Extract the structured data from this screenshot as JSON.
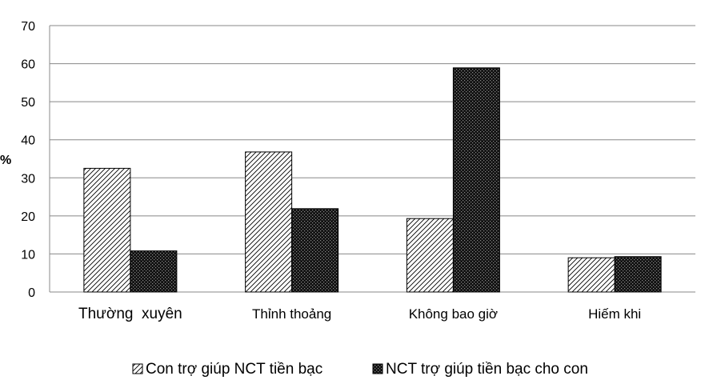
{
  "chart_data": {
    "type": "bar",
    "categories": [
      "Thường  xuyên",
      "Thỉnh thoảng",
      "Không bao giờ",
      "Hiếm khi"
    ],
    "series": [
      {
        "name": "Con trợ giúp NCT tiền bạc",
        "values": [
          32.5,
          36.8,
          19.3,
          9.0
        ],
        "pattern": "diagonal-hatch"
      },
      {
        "name": "NCT trợ giúp tiền bạc cho con",
        "values": [
          10.8,
          21.9,
          58.9,
          9.3
        ],
        "pattern": "dark-dotted"
      }
    ],
    "title": "",
    "xlabel": "",
    "ylabel": "%",
    "ylim": [
      0,
      70
    ],
    "yticks": [
      0,
      10,
      20,
      30,
      40,
      50,
      60,
      70
    ],
    "grid": true,
    "legend": "bottom"
  }
}
